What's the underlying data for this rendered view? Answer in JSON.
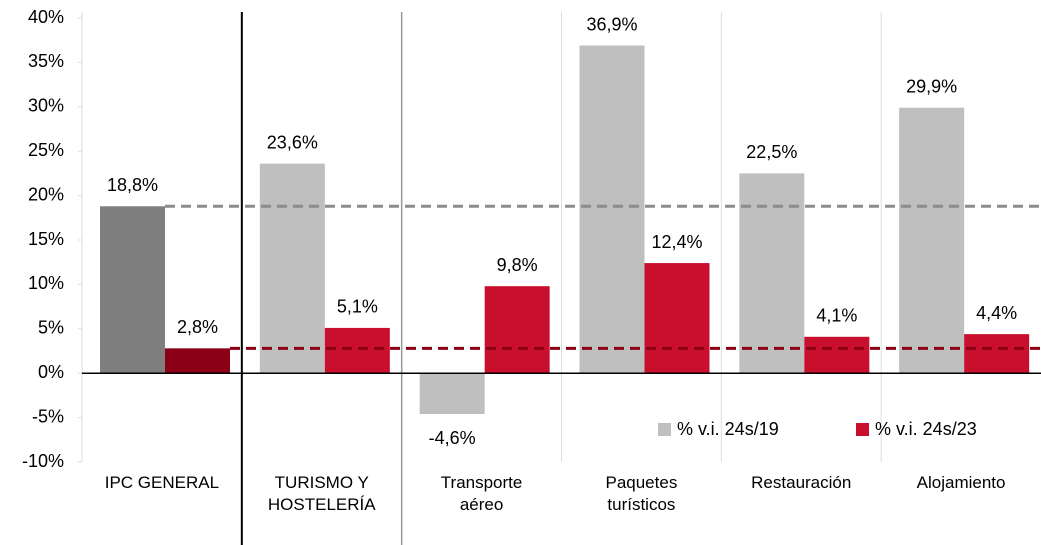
{
  "chart_data": {
    "type": "bar",
    "categories": [
      "IPC GENERAL",
      "TURISMO Y HOSTELERÍA",
      "Transporte aéreo",
      "Paquetes turísticos",
      "Restauración",
      "Alojamiento"
    ],
    "series": [
      {
        "name": "% v.i. 24s/19",
        "color": "#bfbfbf",
        "colors": [
          "#7f7f7f",
          "#bfbfbf",
          "#bfbfbf",
          "#bfbfbf",
          "#bfbfbf",
          "#bfbfbf"
        ],
        "values": [
          18.8,
          23.6,
          -4.6,
          36.9,
          22.5,
          29.9
        ],
        "value_labels": [
          "18,8%",
          "23,6%",
          "-4,6%",
          "36,9%",
          "22,5%",
          "29,9%"
        ]
      },
      {
        "name": "% v.i. 24s/23",
        "color": "#c8102e",
        "colors": [
          "#8b0016",
          "#c8102e",
          "#c8102e",
          "#c8102e",
          "#c8102e",
          "#c8102e"
        ],
        "values": [
          2.8,
          5.1,
          9.8,
          12.4,
          4.1,
          4.4
        ],
        "value_labels": [
          "2,8%",
          "5,1%",
          "9,8%",
          "12,4%",
          "4,1%",
          "4,4%"
        ]
      }
    ],
    "ylim": [
      -10,
      40
    ],
    "yticks": [
      {
        "value": -10,
        "label": "-10%"
      },
      {
        "value": -5,
        "label": "-5%"
      },
      {
        "value": 0,
        "label": "0%"
      },
      {
        "value": 5,
        "label": "5%"
      },
      {
        "value": 10,
        "label": "10%"
      },
      {
        "value": 15,
        "label": "15%"
      },
      {
        "value": 20,
        "label": "20%"
      },
      {
        "value": 25,
        "label": "25%"
      },
      {
        "value": 30,
        "label": "30%"
      },
      {
        "value": 35,
        "label": "35%"
      },
      {
        "value": 40,
        "label": "40%"
      }
    ],
    "legend": "bottom-right"
  }
}
